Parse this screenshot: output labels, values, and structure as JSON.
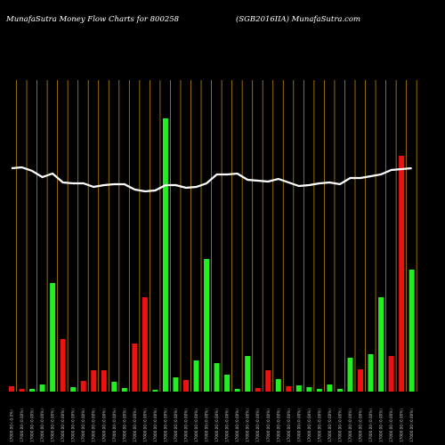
{
  "header": {
    "left_title": "MunafaSutra  Money Flow  Charts for 800258",
    "right_title": "(SGB2016IIA) MunafaSutra.com"
  },
  "colors": {
    "background": "#000000",
    "up": "#22ee22",
    "down": "#ee1111",
    "gridline": "#b8860b",
    "price_line": "#ffffff"
  },
  "chart_data": {
    "type": "bar",
    "title": "MunafaSutra  Money Flow  Charts for 800258",
    "subtitle": "(SGB2016IIA) MunafaSutra.com",
    "x_tick_labels": [
      "17000.00 (-0.0%)",
      "17000.00 (0.00%)",
      "17000.00 (0.00%)",
      "17000.00 (0.00%)",
      "17000.00 (0.00%)",
      "17000.00 (0.00%)",
      "17000.00 (0.00%)",
      "17000.00 (0.00%)",
      "17000.00 (0.00%)",
      "17000.00 (0.00%)",
      "17000.00 (0.00%)",
      "17000.00 (0.00%)",
      "17000.00 (0.00%)",
      "17000.00 (0.00%)",
      "17000.00 (0.00%)",
      "17000.00 (0.00%)",
      "17000.00 (0.00%)",
      "17000.00 (0.00%)",
      "17000.00 (0.00%)",
      "17000.00 (0.00%)",
      "17000.00 (0.00%)",
      "17000.00 (0.00%)",
      "17000.00 (0.00%)",
      "17000.00 (0.00%)",
      "17000.00 (0.00%)",
      "17000.00 (0.00%)",
      "17000.00 (0.00%)",
      "17000.00 (0.00%)",
      "17000.00 (0.00%)",
      "17000.00 (0.00%)",
      "17000.00 (0.00%)",
      "17000.00 (0.00%)",
      "17000.00 (0.00%)",
      "17000.00 (0.00%)",
      "17000.00 (0.00%)",
      "17000.00 (0.00%)",
      "17000.00 (0.00%)",
      "17000.00 (0.00%)",
      "17000.00 (0.00%)",
      "17000.00 (0.00%)"
    ],
    "money_flow": {
      "values": [
        6,
        3,
        3,
        8,
        122,
        59,
        5,
        12,
        24,
        24,
        11,
        4,
        54,
        106,
        2,
        307,
        16,
        13,
        35,
        149,
        32,
        19,
        3,
        40,
        4,
        24,
        14,
        6,
        7,
        5,
        3,
        8,
        3,
        38,
        25,
        42,
        106,
        40,
        265,
        137
      ],
      "direction": [
        "down",
        "down",
        "up",
        "up",
        "up",
        "down",
        "up",
        "down",
        "down",
        "down",
        "up",
        "up",
        "down",
        "down",
        "up",
        "up",
        "up",
        "down",
        "up",
        "up",
        "up",
        "up",
        "up",
        "up",
        "down",
        "down",
        "up",
        "down",
        "up",
        "up",
        "up",
        "up",
        "up",
        "up",
        "down",
        "up",
        "up",
        "down",
        "down",
        "up"
      ],
      "ylim": [
        0,
        350
      ]
    },
    "price": {
      "values": [
        251,
        252,
        248,
        241,
        245,
        235,
        234,
        234,
        230,
        232,
        233,
        233,
        227,
        225,
        226,
        232,
        232,
        229,
        230,
        234,
        244,
        244,
        245,
        238,
        237,
        236,
        239,
        235,
        231,
        232,
        234,
        235,
        233,
        240,
        240,
        242,
        244,
        249,
        250,
        251
      ],
      "ylim": [
        0,
        350
      ]
    },
    "grid": true
  }
}
